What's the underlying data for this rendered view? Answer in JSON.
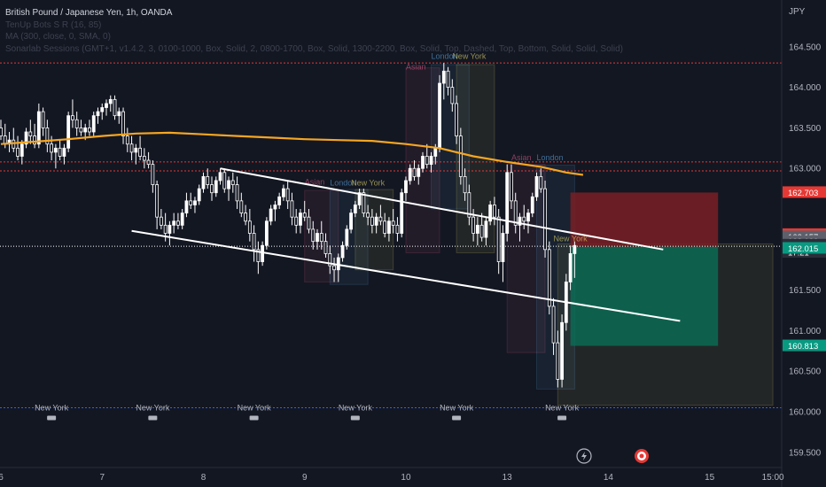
{
  "legend": {
    "title": "British Pound / Japanese Yen, 1h, OANDA",
    "lines": [
      "TenUp Bots S R (16, 85)",
      "MA (300, close, 0, SMA, 0)",
      "Sonarlab Sessions (GMT+1, v1.4.2, 3, 0100-1000, Box, Solid, 2, 0800-1700, Box, Solid, 1300-2200, Box, Solid, Top, Dashed, Top, Bottom, Solid, Solid, Solid)"
    ]
  },
  "currency": "JPY",
  "colors": {
    "background": "#131722",
    "candle": "#ffffff",
    "ma": "#f5a623",
    "red_level": "#e53935",
    "blue_level": "#2962ff",
    "channel": "#ffffff",
    "stop_zone": "#7a1f25",
    "target_zone": "#0a6b55",
    "asian": "#f06292",
    "london": "#64b5f6",
    "newyork": "#fff176"
  },
  "chart_data": {
    "type": "candlestick",
    "title": "British Pound / Japanese Yen, 1h, OANDA",
    "ylim": [
      159.4,
      165.0
    ],
    "y_ticks": [
      {
        "label": "164.500",
        "value": 164.5
      },
      {
        "label": "164.000",
        "value": 164.0
      },
      {
        "label": "163.500",
        "value": 163.5
      },
      {
        "label": "163.000",
        "value": 163.0
      },
      {
        "label": "161.500",
        "value": 161.5
      },
      {
        "label": "161.000",
        "value": 161.0
      },
      {
        "label": "160.500",
        "value": 160.5
      },
      {
        "label": "160.000",
        "value": 160.0
      },
      {
        "label": "159.500",
        "value": 159.5
      }
    ],
    "x_ticks": [
      {
        "label": "6",
        "x": 0
      },
      {
        "label": "7",
        "x": 24
      },
      {
        "label": "8",
        "x": 48
      },
      {
        "label": "9",
        "x": 72
      },
      {
        "label": "10",
        "x": 96
      },
      {
        "label": "13",
        "x": 120
      },
      {
        "label": "14",
        "x": 144
      },
      {
        "label": "15",
        "x": 168
      },
      {
        "label": "15:00",
        "x": 183
      }
    ],
    "price_tags": [
      {
        "label": "162.703",
        "value": 162.703,
        "color": "#e53935"
      },
      {
        "label": "162.185",
        "value": 162.185,
        "color": "#e53935"
      },
      {
        "label": "162.157",
        "value": 162.157,
        "color": "#5d606b"
      },
      {
        "label": "162.100",
        "value": 162.1,
        "color": "#5d606b"
      },
      {
        "label": "162.055",
        "value": 162.055,
        "color": "#2a2e39"
      },
      {
        "label": "17:21",
        "value": 161.965,
        "color": "#2a2e39"
      },
      {
        "label": "162.015",
        "value": 162.015,
        "color": "#089981"
      },
      {
        "label": "160.813",
        "value": 160.813,
        "color": "#089981"
      }
    ],
    "levels": [
      {
        "value": 164.3,
        "color": "#e53935",
        "dash": "2,2"
      },
      {
        "value": 163.08,
        "color": "#e53935",
        "dash": "2,2"
      },
      {
        "value": 162.97,
        "color": "#e53935",
        "dash": "2,2"
      },
      {
        "value": 162.04,
        "color": "#ffffff",
        "dash": "1,2"
      },
      {
        "value": 160.05,
        "color": "#2962ff",
        "dash": "2,2"
      }
    ],
    "ma": [
      [
        0,
        163.3
      ],
      [
        8,
        163.33
      ],
      [
        16,
        163.36
      ],
      [
        24,
        163.4
      ],
      [
        32,
        163.43
      ],
      [
        40,
        163.44
      ],
      [
        48,
        163.42
      ],
      [
        56,
        163.4
      ],
      [
        64,
        163.38
      ],
      [
        72,
        163.36
      ],
      [
        80,
        163.35
      ],
      [
        88,
        163.34
      ],
      [
        96,
        163.3
      ],
      [
        104,
        163.25
      ],
      [
        112,
        163.15
      ],
      [
        120,
        163.08
      ],
      [
        128,
        163.02
      ],
      [
        134,
        162.95
      ],
      [
        138,
        162.92
      ]
    ],
    "trendlines": [
      {
        "x1": 52,
        "y1": 163.0,
        "x2": 157,
        "y2": 162.0
      },
      {
        "x1": 31,
        "y1": 162.23,
        "x2": 161,
        "y2": 161.12
      }
    ],
    "session_labels": [
      {
        "text": "Asian",
        "x": 72,
        "value": 162.8,
        "color": "#f06292"
      },
      {
        "text": "London",
        "x": 78,
        "value": 162.79,
        "color": "#64b5f6"
      },
      {
        "text": "New York",
        "x": 83,
        "value": 162.79,
        "color": "#fff176"
      },
      {
        "text": "Asian",
        "x": 96,
        "value": 164.22,
        "color": "#f06292"
      },
      {
        "text": "London",
        "x": 102,
        "value": 164.35,
        "color": "#64b5f6"
      },
      {
        "text": "New York",
        "x": 107,
        "value": 164.35,
        "color": "#fff176"
      },
      {
        "text": "Asian",
        "x": 121,
        "value": 163.1,
        "color": "#f06292"
      },
      {
        "text": "London",
        "x": 127,
        "value": 163.1,
        "color": "#64b5f6"
      },
      {
        "text": "New York",
        "x": 131,
        "value": 162.1,
        "color": "#fff176"
      }
    ],
    "session_boxes": [
      {
        "x1": 72,
        "x2": 80,
        "top": 162.73,
        "bottom": 161.6,
        "color": "#f06292"
      },
      {
        "x1": 78,
        "x2": 87,
        "top": 162.74,
        "bottom": 161.57,
        "color": "#64b5f6"
      },
      {
        "x1": 84,
        "x2": 93,
        "top": 162.74,
        "bottom": 161.75,
        "color": "#fff176"
      },
      {
        "x1": 96,
        "x2": 104,
        "top": 164.24,
        "bottom": 161.96,
        "color": "#f06292"
      },
      {
        "x1": 102,
        "x2": 111,
        "top": 164.28,
        "bottom": 162.5,
        "color": "#64b5f6"
      },
      {
        "x1": 108,
        "x2": 117,
        "top": 164.28,
        "bottom": 161.96,
        "color": "#fff176"
      },
      {
        "x1": 120,
        "x2": 129,
        "top": 163.05,
        "bottom": 160.73,
        "color": "#f06292"
      },
      {
        "x1": 127,
        "x2": 136,
        "top": 163.04,
        "bottom": 160.28,
        "color": "#64b5f6"
      },
      {
        "x1": 132,
        "x2": 183,
        "top": 162.07,
        "bottom": 160.08,
        "color": "#fff176"
      }
    ],
    "ny_markers": [
      {
        "text": "New York",
        "x": 12
      },
      {
        "text": "New York",
        "x": 36
      },
      {
        "text": "New York",
        "x": 60
      },
      {
        "text": "New York",
        "x": 84
      },
      {
        "text": "New York",
        "x": 108
      },
      {
        "text": "New York",
        "x": 133
      }
    ],
    "position": {
      "x1": 135,
      "x2": 170,
      "entry": 162.035,
      "stop": 162.703,
      "target": 160.813
    },
    "candles": [
      [
        0,
        163.5,
        163.6,
        163.35,
        163.4
      ],
      [
        1,
        163.4,
        163.55,
        163.25,
        163.3
      ],
      [
        2,
        163.3,
        163.45,
        163.2,
        163.35
      ],
      [
        3,
        163.35,
        163.5,
        163.2,
        163.25
      ],
      [
        4,
        163.25,
        163.4,
        163.1,
        163.15
      ],
      [
        5,
        163.15,
        163.35,
        163.05,
        163.3
      ],
      [
        6,
        163.3,
        163.5,
        163.25,
        163.45
      ],
      [
        7,
        163.45,
        163.6,
        163.3,
        163.4
      ],
      [
        8,
        163.4,
        163.55,
        163.25,
        163.3
      ],
      [
        9,
        163.3,
        163.8,
        163.25,
        163.7
      ],
      [
        10,
        163.7,
        163.75,
        163.4,
        163.5
      ],
      [
        11,
        163.5,
        163.6,
        163.2,
        163.3
      ],
      [
        12,
        163.3,
        163.4,
        163.1,
        163.2
      ],
      [
        13,
        163.2,
        163.3,
        163.0,
        163.25
      ],
      [
        14,
        163.25,
        163.35,
        163.1,
        163.15
      ],
      [
        15,
        163.15,
        163.3,
        163.05,
        163.25
      ],
      [
        16,
        163.25,
        163.7,
        163.2,
        163.65
      ],
      [
        17,
        163.65,
        163.85,
        163.5,
        163.6
      ],
      [
        18,
        163.6,
        163.7,
        163.4,
        163.5
      ],
      [
        19,
        163.5,
        163.6,
        163.4,
        163.45
      ],
      [
        20,
        163.45,
        163.55,
        163.35,
        163.5
      ],
      [
        21,
        163.5,
        163.6,
        163.4,
        163.45
      ],
      [
        22,
        163.45,
        163.7,
        163.4,
        163.65
      ],
      [
        23,
        163.65,
        163.75,
        163.55,
        163.7
      ],
      [
        24,
        163.7,
        163.8,
        163.6,
        163.75
      ],
      [
        25,
        163.75,
        163.85,
        163.65,
        163.8
      ],
      [
        26,
        163.8,
        163.9,
        163.7,
        163.85
      ],
      [
        27,
        163.85,
        163.9,
        163.6,
        163.65
      ],
      [
        28,
        163.65,
        163.75,
        163.55,
        163.7
      ],
      [
        29,
        163.7,
        163.75,
        163.3,
        163.4
      ],
      [
        30,
        163.4,
        163.5,
        163.2,
        163.3
      ],
      [
        31,
        163.3,
        163.4,
        163.1,
        163.2
      ],
      [
        32,
        163.2,
        163.3,
        163.05,
        163.25
      ],
      [
        33,
        163.25,
        163.4,
        163.1,
        163.15
      ],
      [
        34,
        163.15,
        163.25,
        163.0,
        163.1
      ],
      [
        35,
        163.1,
        163.2,
        163.0,
        163.05
      ],
      [
        36,
        163.05,
        163.1,
        162.7,
        162.8
      ],
      [
        37,
        162.8,
        162.85,
        162.25,
        162.4
      ],
      [
        38,
        162.4,
        162.5,
        162.25,
        162.3
      ],
      [
        39,
        162.3,
        162.45,
        162.1,
        162.2
      ],
      [
        40,
        162.2,
        162.35,
        162.05,
        162.3
      ],
      [
        41,
        162.3,
        162.45,
        162.2,
        162.35
      ],
      [
        42,
        162.35,
        162.45,
        162.25,
        162.3
      ],
      [
        43,
        162.3,
        162.5,
        162.25,
        162.45
      ],
      [
        44,
        162.45,
        162.7,
        162.4,
        162.6
      ],
      [
        45,
        162.6,
        162.7,
        162.5,
        162.55
      ],
      [
        46,
        162.55,
        162.65,
        162.45,
        162.6
      ],
      [
        47,
        162.6,
        162.8,
        162.55,
        162.75
      ],
      [
        48,
        162.75,
        162.95,
        162.7,
        162.9
      ],
      [
        49,
        162.9,
        163.0,
        162.75,
        162.8
      ],
      [
        50,
        162.8,
        162.9,
        162.6,
        162.7
      ],
      [
        51,
        162.7,
        162.9,
        162.65,
        162.85
      ],
      [
        52,
        162.85,
        163.0,
        162.8,
        162.95
      ],
      [
        53,
        162.95,
        163.0,
        162.7,
        162.75
      ],
      [
        54,
        162.75,
        162.9,
        162.6,
        162.85
      ],
      [
        55,
        162.85,
        162.95,
        162.7,
        162.8
      ],
      [
        56,
        162.8,
        162.9,
        162.5,
        162.6
      ],
      [
        57,
        162.6,
        162.7,
        162.4,
        162.45
      ],
      [
        58,
        162.45,
        162.55,
        162.3,
        162.35
      ],
      [
        59,
        162.35,
        162.5,
        162.1,
        162.2
      ],
      [
        60,
        162.2,
        162.3,
        161.85,
        162.0
      ],
      [
        61,
        162.0,
        162.1,
        161.7,
        161.85
      ],
      [
        62,
        161.85,
        162.1,
        161.8,
        162.05
      ],
      [
        63,
        162.05,
        162.4,
        162.0,
        162.35
      ],
      [
        64,
        162.35,
        162.55,
        162.3,
        162.5
      ],
      [
        65,
        162.5,
        162.6,
        162.35,
        162.55
      ],
      [
        66,
        162.55,
        162.7,
        162.5,
        162.65
      ],
      [
        67,
        162.65,
        162.8,
        162.6,
        162.75
      ],
      [
        68,
        162.75,
        162.85,
        162.5,
        162.6
      ],
      [
        69,
        162.6,
        162.7,
        162.3,
        162.4
      ],
      [
        70,
        162.4,
        162.5,
        162.2,
        162.3
      ],
      [
        71,
        162.3,
        162.5,
        162.2,
        162.45
      ],
      [
        72,
        162.45,
        162.6,
        162.35,
        162.4
      ],
      [
        73,
        162.4,
        162.5,
        162.2,
        162.25
      ],
      [
        74,
        162.25,
        162.35,
        162.0,
        162.1
      ],
      [
        75,
        162.1,
        162.25,
        162.0,
        162.2
      ],
      [
        76,
        162.2,
        162.35,
        162.0,
        162.1
      ],
      [
        77,
        162.1,
        162.2,
        161.9,
        161.95
      ],
      [
        78,
        161.95,
        162.05,
        161.7,
        161.8
      ],
      [
        79,
        161.8,
        161.9,
        161.6,
        161.75
      ],
      [
        80,
        161.75,
        161.95,
        161.6,
        161.9
      ],
      [
        81,
        161.9,
        162.1,
        161.85,
        162.05
      ],
      [
        82,
        162.05,
        162.3,
        162.0,
        162.25
      ],
      [
        83,
        162.25,
        162.5,
        162.2,
        162.45
      ],
      [
        84,
        162.45,
        162.6,
        162.4,
        162.55
      ],
      [
        85,
        162.55,
        162.75,
        162.5,
        162.7
      ],
      [
        86,
        162.7,
        162.75,
        162.4,
        162.45
      ],
      [
        87,
        162.45,
        162.55,
        162.3,
        162.4
      ],
      [
        88,
        162.4,
        162.5,
        162.2,
        162.3
      ],
      [
        89,
        162.3,
        162.45,
        162.2,
        162.4
      ],
      [
        90,
        162.4,
        162.55,
        162.3,
        162.35
      ],
      [
        91,
        162.35,
        162.45,
        162.15,
        162.2
      ],
      [
        92,
        162.2,
        162.4,
        162.1,
        162.35
      ],
      [
        93,
        162.35,
        162.5,
        162.2,
        162.3
      ],
      [
        94,
        162.3,
        162.4,
        162.1,
        162.2
      ],
      [
        95,
        162.2,
        162.75,
        162.15,
        162.7
      ],
      [
        96,
        162.7,
        162.9,
        162.6,
        162.85
      ],
      [
        97,
        162.85,
        163.05,
        162.8,
        163.0
      ],
      [
        98,
        163.0,
        163.1,
        162.85,
        162.9
      ],
      [
        99,
        162.9,
        163.05,
        162.8,
        163.0
      ],
      [
        100,
        163.0,
        163.2,
        162.95,
        163.15
      ],
      [
        101,
        163.15,
        163.3,
        163.0,
        163.05
      ],
      [
        102,
        163.05,
        163.2,
        162.95,
        163.15
      ],
      [
        103,
        163.15,
        163.3,
        163.05,
        163.25
      ],
      [
        104,
        163.25,
        164.15,
        163.2,
        164.05
      ],
      [
        105,
        164.05,
        164.3,
        163.85,
        164.2
      ],
      [
        106,
        164.2,
        164.25,
        163.9,
        164.0
      ],
      [
        107,
        164.0,
        164.1,
        163.7,
        163.8
      ],
      [
        108,
        163.8,
        163.9,
        163.3,
        163.4
      ],
      [
        109,
        163.4,
        163.5,
        162.8,
        162.9
      ],
      [
        110,
        162.9,
        163.0,
        162.6,
        162.7
      ],
      [
        111,
        162.7,
        162.8,
        162.3,
        162.4
      ],
      [
        112,
        162.4,
        162.5,
        162.1,
        162.2
      ],
      [
        113,
        162.2,
        162.4,
        162.05,
        162.3
      ],
      [
        114,
        162.3,
        162.45,
        162.1,
        162.15
      ],
      [
        115,
        162.15,
        162.4,
        162.05,
        162.35
      ],
      [
        116,
        162.35,
        162.6,
        162.3,
        162.55
      ],
      [
        117,
        162.55,
        162.65,
        162.3,
        162.4
      ],
      [
        118,
        162.4,
        162.5,
        161.7,
        161.85
      ],
      [
        119,
        161.85,
        162.3,
        161.6,
        162.2
      ],
      [
        120,
        162.2,
        163.05,
        162.1,
        162.95
      ],
      [
        121,
        162.95,
        163.05,
        162.5,
        162.6
      ],
      [
        122,
        162.6,
        162.7,
        162.2,
        162.3
      ],
      [
        123,
        162.3,
        162.45,
        162.1,
        162.4
      ],
      [
        124,
        162.4,
        162.55,
        162.25,
        162.35
      ],
      [
        125,
        162.35,
        162.5,
        162.2,
        162.45
      ],
      [
        126,
        162.45,
        162.7,
        162.4,
        162.65
      ],
      [
        127,
        162.65,
        162.95,
        162.6,
        162.9
      ],
      [
        128,
        162.9,
        163.0,
        162.7,
        162.75
      ],
      [
        129,
        162.75,
        162.85,
        161.9,
        162.0
      ],
      [
        130,
        162.0,
        162.1,
        161.2,
        161.3
      ],
      [
        131,
        161.3,
        161.4,
        160.7,
        160.85
      ],
      [
        132,
        160.85,
        161.0,
        160.3,
        160.4
      ],
      [
        133,
        160.4,
        161.2,
        160.3,
        161.1
      ],
      [
        134,
        161.1,
        161.7,
        161.0,
        161.6
      ],
      [
        135,
        161.6,
        162.05,
        161.5,
        161.95
      ],
      [
        136,
        161.95,
        162.1,
        161.65,
        162.05
      ]
    ]
  },
  "buttons": {
    "replay_icon": "lightning-icon",
    "target_icon": "target-icon"
  }
}
